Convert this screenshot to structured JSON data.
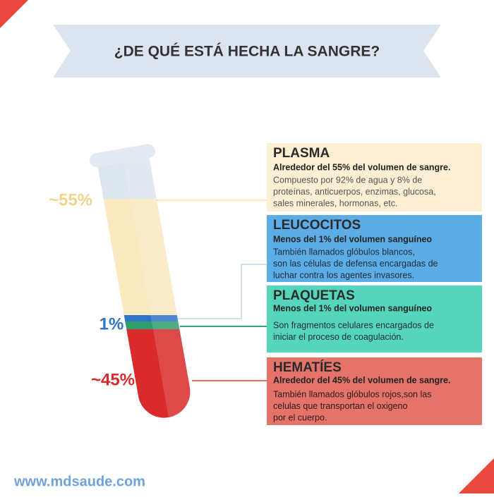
{
  "title": "¿DE QUÉ ESTÁ HECHA LA SANGRE?",
  "labels": [
    "~55%",
    "1%",
    "~45%"
  ],
  "sections": [
    {
      "title": "PLASMA",
      "subtitle": "Alrededor del 55% del volumen de sangre.",
      "body": [
        "Compuesto por 92% de agua y 8% de",
        "proteínas, anticuerpos, enzimas, glucosa,",
        "sales minerales, hormonas, etc."
      ]
    },
    {
      "title": "LEUCOCITOS",
      "subtitle": "Menos del 1% del volumen sanguíneo",
      "body": [
        "También llamados glóbulos blancos,",
        "son las células de defensa encargadas de",
        "luchar contra los agentes invasores."
      ]
    },
    {
      "title": "PLAQUETAS",
      "subtitle": "Menos del 1% del volumen sanguíneo",
      "body": [
        "Son fragmentos celulares encargados de",
        "iniciar el proceso de coagulación."
      ]
    },
    {
      "title": "HEMATÍES",
      "subtitle": "Alrededor del 45% del volumen de sangre.",
      "body": [
        "También llamados glóbulos rojos,son las",
        "celulas que transportan el oxigeno",
        "por el cuerpo."
      ]
    }
  ],
  "footer": "www.mdsaude.com"
}
